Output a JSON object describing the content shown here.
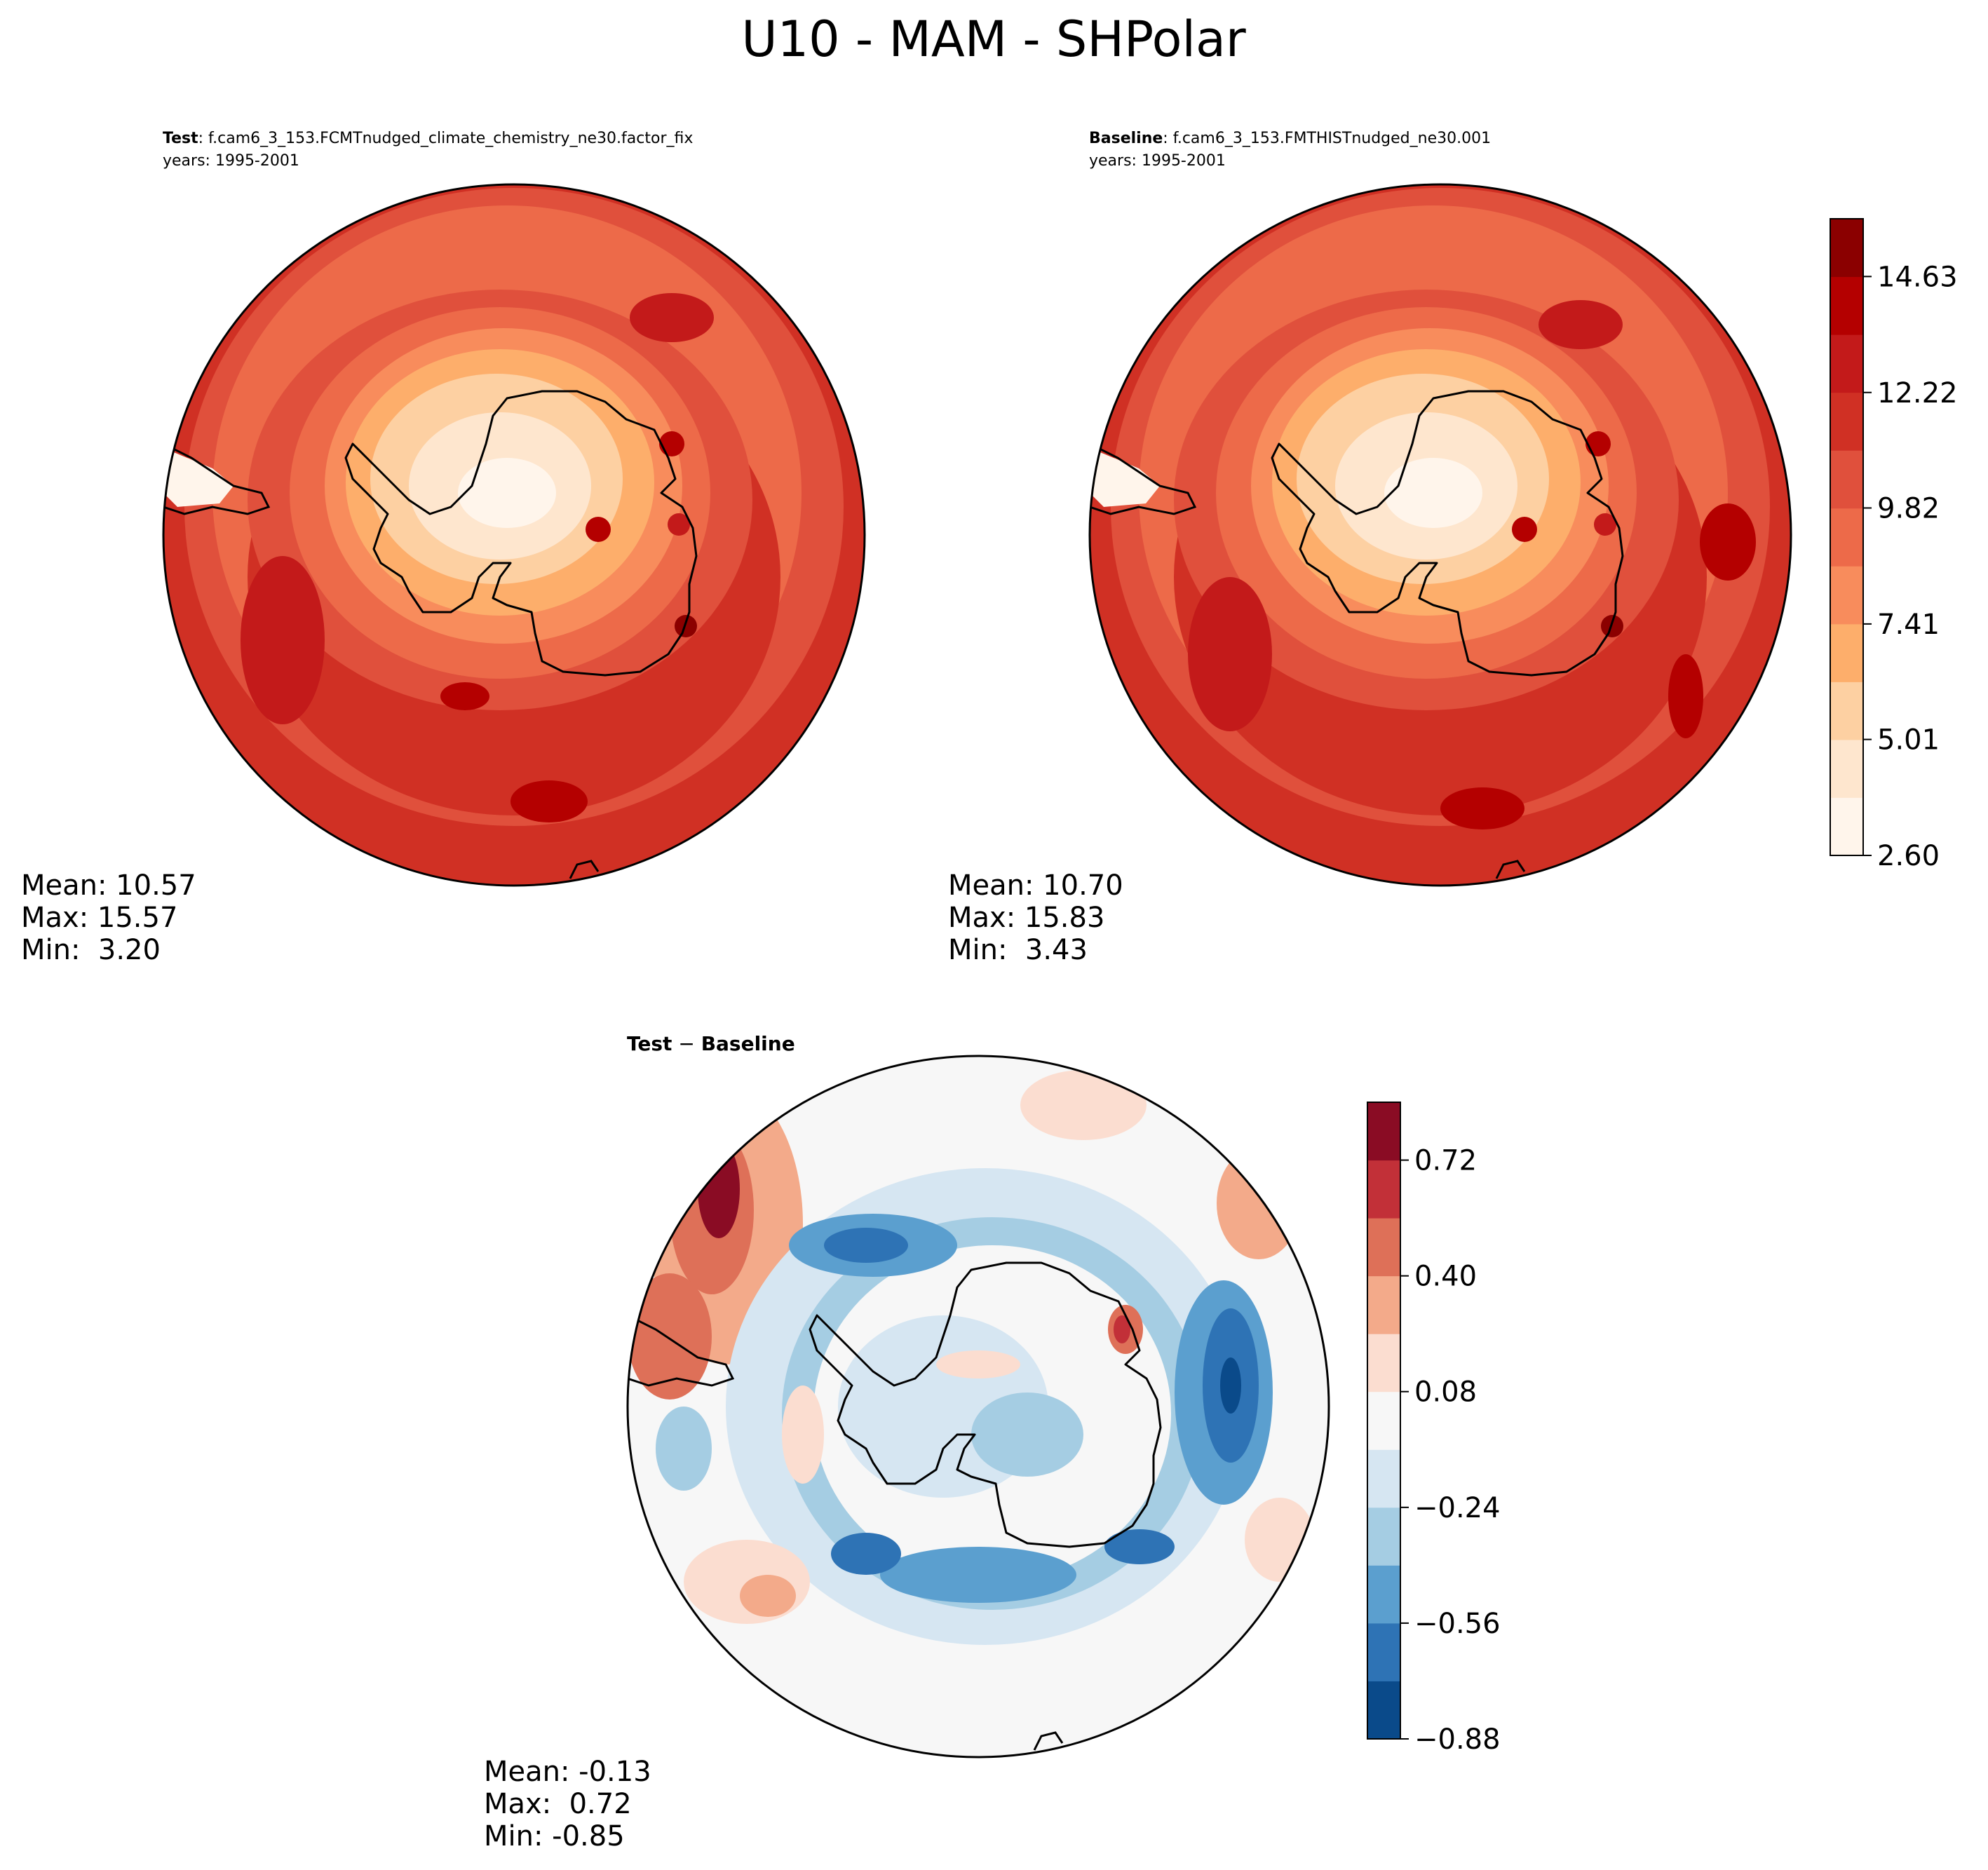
{
  "figure_title": "U10 - MAM - SHPolar",
  "chart_data": [
    {
      "type": "contour_map",
      "panel": "test",
      "projection": "south polar stereographic",
      "title_bold": "Test",
      "title_rest": ": f.cam6_3_153.FCMTnudged_climate_chemistry_ne30.factor_fix",
      "years": "years: 1995-2001",
      "stats": [
        "Mean: 10.57",
        "Max: 15.57",
        "Min:  3.20"
      ],
      "colormap": "Reds"
    },
    {
      "type": "contour_map",
      "panel": "baseline",
      "projection": "south polar stereographic",
      "title_bold": "Baseline",
      "title_rest": ": f.cam6_3_153.FMTHISTnudged_ne30.001",
      "years": "years: 1995-2001",
      "stats": [
        "Mean: 10.70",
        "Max: 15.83",
        "Min:  3.43"
      ],
      "colormap": "Reds"
    },
    {
      "type": "contour_map",
      "panel": "difference",
      "projection": "south polar stereographic",
      "title_bold": "Test",
      "title_op": " − ",
      "title_bold2": "Baseline",
      "stats": [
        "Mean: -0.13",
        "Max:  0.72",
        "Min: -0.85"
      ],
      "colormap": "RdBu_r"
    }
  ],
  "colorbars": {
    "upper": {
      "range": [
        2.6,
        15.83
      ],
      "tick_values": [
        2.6,
        5.01,
        7.41,
        9.82,
        12.22,
        14.63
      ],
      "tick_labels": [
        "2.60",
        "5.01",
        "7.41",
        "9.82",
        "12.22",
        "14.63"
      ],
      "colors": [
        "#fff5eb",
        "#fee6ce",
        "#fdd0a2",
        "#fdae6b",
        "#f88c5c",
        "#ed6a49",
        "#e0503c",
        "#d03024",
        "#c31a1a",
        "#b40000",
        "#8b0000"
      ]
    },
    "lower": {
      "range": [
        -0.88,
        0.88
      ],
      "tick_values": [
        -0.88,
        -0.56,
        -0.24,
        0.08,
        0.4,
        0.72
      ],
      "tick_labels": [
        "−0.88",
        "−0.56",
        "−0.24",
        "0.08",
        "0.40",
        "0.72"
      ],
      "colors": [
        "#0a4a8a",
        "#2e73b5",
        "#5b9fcf",
        "#a5cde3",
        "#d6e6f2",
        "#f7f7f7",
        "#fbddd0",
        "#f3aa8a",
        "#de7058",
        "#c23038",
        "#8a0c24"
      ]
    }
  }
}
